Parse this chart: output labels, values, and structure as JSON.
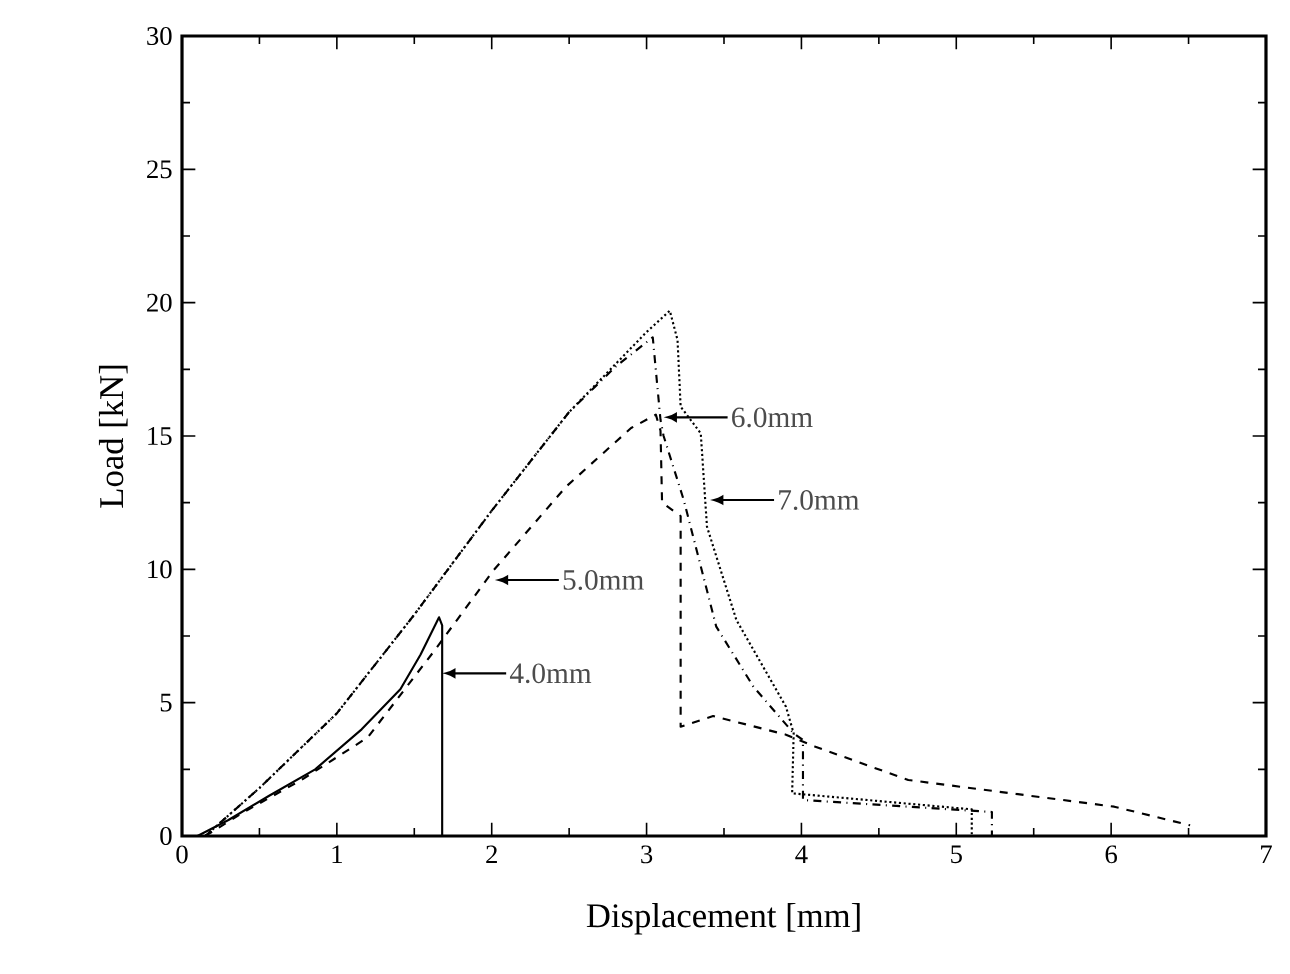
{
  "chart_data": {
    "type": "line",
    "xlabel": "Displacement [mm]",
    "ylabel": "Load [kN]",
    "xlim": [
      0,
      7
    ],
    "ylim": [
      0,
      30
    ],
    "xticks": [
      0,
      1,
      2,
      3,
      4,
      5,
      6,
      7
    ],
    "yticks": [
      0,
      5,
      10,
      15,
      20,
      25,
      30
    ],
    "marker": "none",
    "series": [
      {
        "color": "#000000",
        "line_style": "solid",
        "x": [
          0.1,
          0.3,
          0.56,
          0.86,
          1.16,
          1.41,
          1.54,
          1.66,
          1.68,
          1.68
        ],
        "values": [
          0,
          0.6,
          1.5,
          2.5,
          4.0,
          5.5,
          6.8,
          8.2,
          7.9,
          0
        ]
      },
      {
        "color": "#000000",
        "line_style": "dashed",
        "x": [
          0.15,
          0.4,
          0.77,
          1.2,
          1.63,
          2.01,
          2.48,
          2.9,
          3.06,
          3.09,
          3.1,
          3.22,
          3.22,
          3.43,
          3.9,
          4.09,
          4.69,
          6.02,
          6.51
        ],
        "values": [
          0,
          0.9,
          2.1,
          3.7,
          6.95,
          9.95,
          13.1,
          15.3,
          15.8,
          15.2,
          12.5,
          12.0,
          4.1,
          4.5,
          3.8,
          3.35,
          2.1,
          1.1,
          0.4
        ]
      },
      {
        "color": "#000000",
        "line_style": "dashdot",
        "x": [
          0.15,
          0.5,
          1.0,
          1.5,
          2.0,
          2.5,
          2.8,
          3.04,
          3.09,
          3.11,
          3.24,
          3.45,
          3.69,
          3.95,
          4.01,
          4.01,
          5.23,
          5.23
        ],
        "values": [
          0,
          1.8,
          4.6,
          8.3,
          12.2,
          15.9,
          17.6,
          18.7,
          15.6,
          15.0,
          12.6,
          7.85,
          5.6,
          3.85,
          3.6,
          1.35,
          0.9,
          0
        ]
      },
      {
        "color": "#000000",
        "line_style": "dotted",
        "x": [
          0.15,
          0.5,
          1.0,
          1.5,
          2.0,
          2.5,
          2.8,
          3.0,
          3.15,
          3.2,
          3.22,
          3.35,
          3.39,
          3.58,
          3.9,
          3.95,
          3.94,
          5.1,
          5.1
        ],
        "values": [
          0,
          1.8,
          4.6,
          8.3,
          12.2,
          15.9,
          17.7,
          18.9,
          19.7,
          18.6,
          16.1,
          15.1,
          11.6,
          8.1,
          4.85,
          3.85,
          1.6,
          1.0,
          0
        ]
      }
    ],
    "annotations": [
      {
        "text": "4.0mm",
        "x": 1.68,
        "y": 6.1
      },
      {
        "text": "5.0mm",
        "x": 2.02,
        "y": 9.6
      },
      {
        "text": "6.0mm",
        "x": 3.11,
        "y": 15.7
      },
      {
        "text": "7.0mm",
        "x": 3.41,
        "y": 12.6
      }
    ]
  }
}
